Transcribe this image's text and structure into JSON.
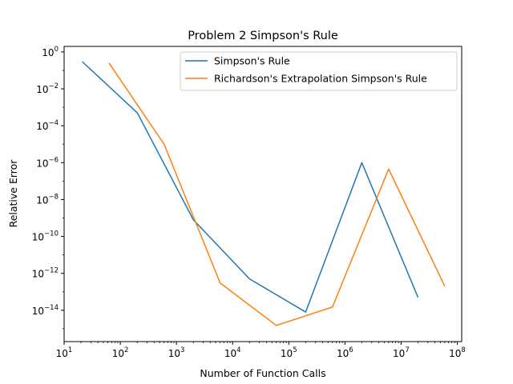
{
  "chart_data": {
    "type": "line",
    "title": "Problem 2 Simpson's Rule",
    "xlabel": "Number of Function Calls",
    "ylabel": "Relative Error",
    "xscale": "log",
    "yscale": "log",
    "xlim": [
      10,
      120000000
    ],
    "ylim": [
      2e-16,
      2
    ],
    "x_ticks": [
      {
        "base": "10",
        "exp": "1",
        "value": 10
      },
      {
        "base": "10",
        "exp": "2",
        "value": 100
      },
      {
        "base": "10",
        "exp": "3",
        "value": 1000
      },
      {
        "base": "10",
        "exp": "4",
        "value": 10000
      },
      {
        "base": "10",
        "exp": "5",
        "value": 100000
      },
      {
        "base": "10",
        "exp": "6",
        "value": 1000000
      },
      {
        "base": "10",
        "exp": "7",
        "value": 10000000
      },
      {
        "base": "10",
        "exp": "8",
        "value": 100000000
      }
    ],
    "y_ticks": [
      {
        "base": "10",
        "exp": "0",
        "value": 1
      },
      {
        "base": "10",
        "exp": "−2",
        "value": 0.01
      },
      {
        "base": "10",
        "exp": "−4",
        "value": 0.0001
      },
      {
        "base": "10",
        "exp": "−6",
        "value": 1e-06
      },
      {
        "base": "10",
        "exp": "−8",
        "value": 1e-08
      },
      {
        "base": "10",
        "exp": "−10",
        "value": 1e-10
      },
      {
        "base": "10",
        "exp": "−12",
        "value": 1e-12
      },
      {
        "base": "10",
        "exp": "−14",
        "value": 1e-14
      }
    ],
    "series": [
      {
        "name": "Simpson's Rule",
        "color": "#1f77b4",
        "x": [
          21,
          201,
          2001,
          20001,
          200001,
          2000001,
          20000001
        ],
        "y": [
          0.3,
          0.0005,
          8e-10,
          5e-13,
          8e-15,
          1e-06,
          5e-14
        ]
      },
      {
        "name": "Richardson's Extrapolation Simpson's Rule",
        "color": "#ff7f0e",
        "x": [
          63,
          603,
          6003,
          60003,
          600003,
          6000003,
          60000003
        ],
        "y": [
          0.25,
          1e-05,
          3e-13,
          1.5e-15,
          1.5e-14,
          4.5e-07,
          2e-13
        ]
      }
    ],
    "legend": "top-right",
    "grid": false
  }
}
